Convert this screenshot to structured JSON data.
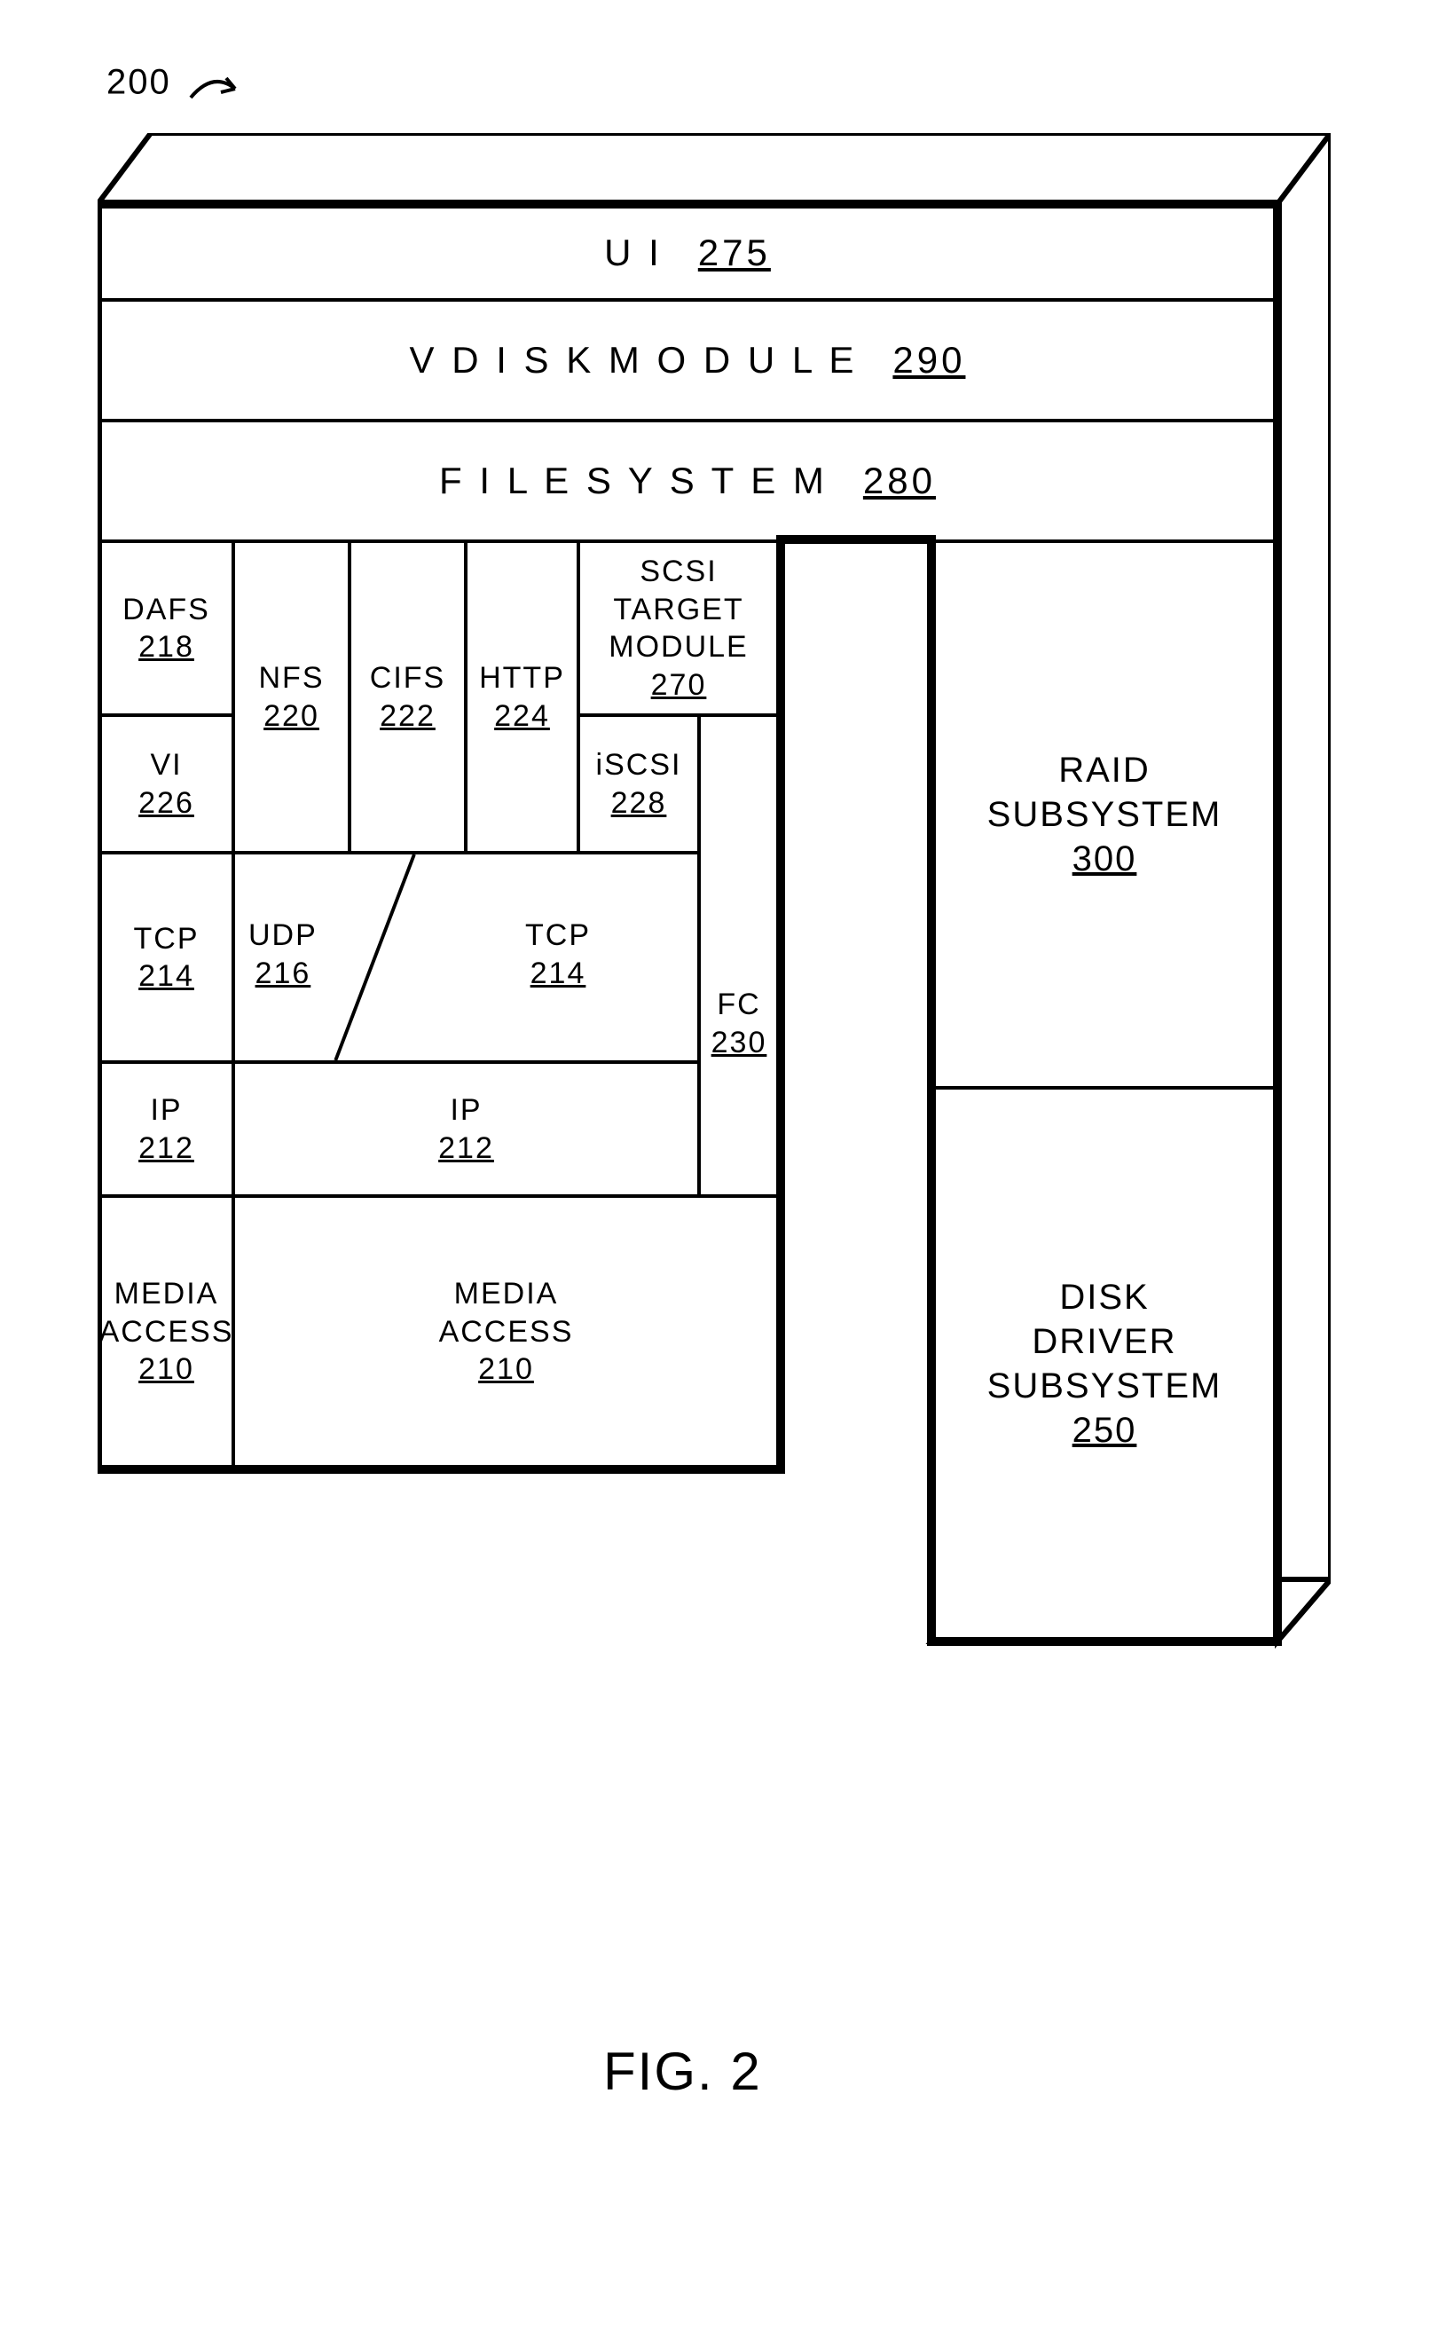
{
  "figure": {
    "ref": "200",
    "caption": "FIG. 2",
    "stroke": "#000000",
    "background": "#ffffff",
    "font_size_block": 34,
    "font_size_big": 42,
    "font_size_caption": 60,
    "font_size_ref": 40,
    "border_width": 4
  },
  "blocks": {
    "ui": {
      "label": "U I",
      "num": "275"
    },
    "vdisk": {
      "label": "V D I S K   M O D U L E",
      "num": "290"
    },
    "fs": {
      "label": "F I L E   S Y S T E M",
      "num": "280"
    },
    "raid": {
      "label": "RAID\nSUBSYSTEM",
      "num": "300"
    },
    "diskdrv": {
      "label": "DISK\nDRIVER\nSUBSYSTEM",
      "num": "250"
    },
    "scsi_tgt": {
      "label": "SCSI TARGET\nMODULE",
      "num": "270"
    },
    "iscsi": {
      "label": "iSCSI",
      "num": "228"
    },
    "fc": {
      "label": "FC",
      "num": "230"
    },
    "dafs": {
      "label": "DAFS",
      "num": "218"
    },
    "vi": {
      "label": "VI",
      "num": "226"
    },
    "nfs": {
      "label": "NFS",
      "num": "220"
    },
    "cifs": {
      "label": "CIFS",
      "num": "222"
    },
    "http": {
      "label": "HTTP",
      "num": "224"
    },
    "tcp_l": {
      "label": "TCP",
      "num": "214"
    },
    "ip_l": {
      "label": "IP",
      "num": "212"
    },
    "media_l": {
      "label": "MEDIA\nACCESS",
      "num": "210"
    },
    "udp": {
      "label": "UDP",
      "num": "216"
    },
    "tcp_r": {
      "label": "TCP",
      "num": "214"
    },
    "ip_r": {
      "label": "IP",
      "num": "212"
    },
    "media_r": {
      "label": "MEDIA\nACCESS",
      "num": "210"
    }
  }
}
